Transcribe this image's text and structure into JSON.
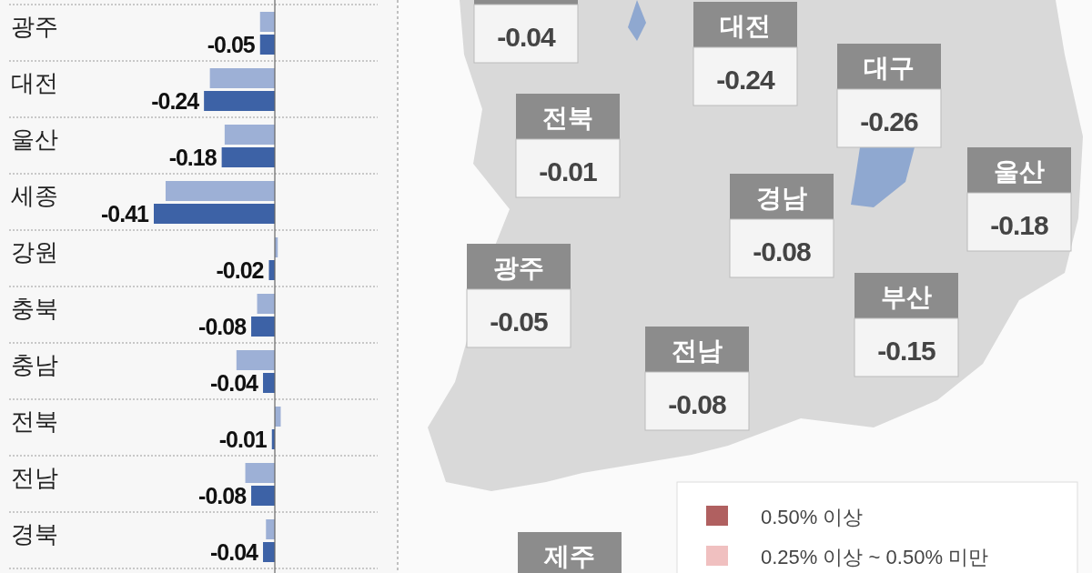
{
  "chart_data": [
    {
      "type": "bar",
      "orientation": "horizontal",
      "categories": [
        "광주",
        "대전",
        "울산",
        "세종",
        "강원",
        "충북",
        "충남",
        "전북",
        "전남",
        "경북"
      ],
      "series": [
        {
          "color": "#9db0d6",
          "values": [
            -0.05,
            -0.22,
            -0.17,
            -0.37,
            0.01,
            -0.06,
            -0.13,
            0.02,
            -0.1,
            -0.03
          ]
        },
        {
          "color": "#3d62a6",
          "values": [
            -0.05,
            -0.24,
            -0.18,
            -0.41,
            -0.02,
            -0.08,
            -0.04,
            -0.01,
            -0.08,
            -0.04
          ],
          "value_labels": [
            "-0.05",
            "-0.24",
            "-0.18",
            "-0.41",
            "-0.02",
            "-0.08",
            "-0.04",
            "-0.01",
            "-0.08",
            "-0.04"
          ]
        }
      ]
    },
    {
      "type": "other",
      "categories": [
        null,
        "대전",
        "대구",
        "전북",
        "경남",
        "울산",
        "광주",
        "부산",
        "전남",
        "제주"
      ],
      "value_labels": [
        "-0.04",
        "-0.24",
        "-0.26",
        "-0.01",
        "-0.08",
        "-0.18",
        "-0.05",
        "-0.15",
        "-0.08",
        null
      ],
      "annotations": [
        "0.50% 이상",
        "0.25% 이상 ~ 0.50% 미만"
      ]
    }
  ]
}
